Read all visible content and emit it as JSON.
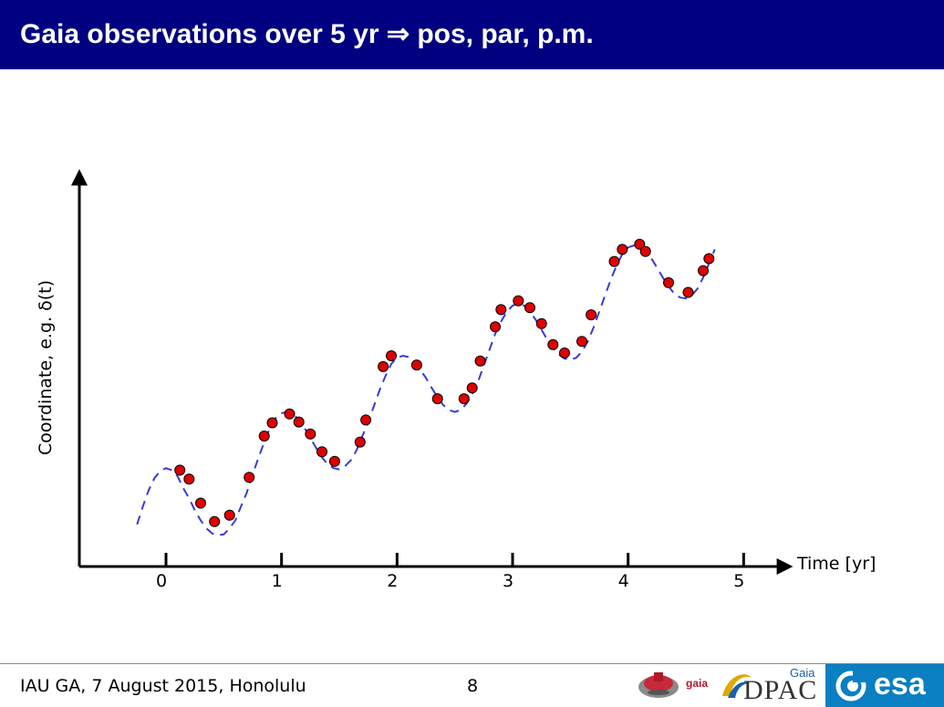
{
  "slide": {
    "title": "Gaia observations over 5 yr ⇒ pos, par, p.m.",
    "footer": "IAU GA, 7 August 2015, Honolulu",
    "page_number": "8"
  },
  "logos": {
    "gaia_label": "gaia",
    "dpac_label": "DPAC",
    "dpac_superscript": "Gaia",
    "esa_label": "esa"
  },
  "colors": {
    "title_bar": "#000080",
    "curve": "#3a3ad6",
    "points": "#e00000",
    "esa_blue": "#0a7fc2"
  },
  "chart_data": {
    "type": "scatter",
    "xlabel": "Time [yr]",
    "ylabel": "Coordinate, e.g. δ(t)",
    "xticks": [
      0,
      1,
      2,
      3,
      4,
      5
    ],
    "xlim": [
      -0.75,
      5.4
    ],
    "ylim": [
      0,
      10
    ],
    "series": [
      {
        "kind": "dashed-curve",
        "x": [
          -0.25,
          -0.2,
          -0.15,
          -0.1,
          -0.05,
          0,
          0.05,
          0.1,
          0.15,
          0.2,
          0.25,
          0.3,
          0.35,
          0.4,
          0.45,
          0.5,
          0.55,
          0.6,
          0.65,
          0.7,
          0.75,
          0.8,
          0.85,
          0.9,
          0.95,
          1,
          1.05,
          1.1,
          1.15,
          1.2,
          1.25,
          1.3,
          1.35,
          1.4,
          1.45,
          1.5,
          1.55,
          1.6,
          1.65,
          1.7,
          1.75,
          1.8,
          1.85,
          1.9,
          1.95,
          2,
          2.05,
          2.1,
          2.15,
          2.2,
          2.25,
          2.3,
          2.35,
          2.4,
          2.45,
          2.5,
          2.55,
          2.6,
          2.65,
          2.7,
          2.75,
          2.8,
          2.85,
          2.9,
          2.95,
          3,
          3.05,
          3.1,
          3.15,
          3.2,
          3.25,
          3.3,
          3.35,
          3.4,
          3.45,
          3.5,
          3.55,
          3.6,
          3.65,
          3.7,
          3.75,
          3.8,
          3.85,
          3.9,
          3.95,
          4,
          4.05,
          4.1,
          4.15,
          4.2,
          4.25,
          4.3,
          4.35,
          4.4,
          4.45,
          4.5,
          4.55,
          4.6,
          4.65,
          4.7,
          4.75
        ],
        "y": [
          1.05,
          1.5,
          1.9,
          2.2,
          2.38,
          2.45,
          2.4,
          2.25,
          1.95,
          1.7,
          1.4,
          1.15,
          0.95,
          0.82,
          0.78,
          0.8,
          0.95,
          1.15,
          1.5,
          1.85,
          2.3,
          2.7,
          3.1,
          3.45,
          3.7,
          3.82,
          3.85,
          3.8,
          3.65,
          3.45,
          3.2,
          2.95,
          2.72,
          2.55,
          2.45,
          2.42,
          2.5,
          2.65,
          2.9,
          3.25,
          3.6,
          4.0,
          4.4,
          4.75,
          5.05,
          5.2,
          5.25,
          5.22,
          5.1,
          4.9,
          4.7,
          4.45,
          4.22,
          4.02,
          3.9,
          3.85,
          3.9,
          4.05,
          4.3,
          4.6,
          5.0,
          5.4,
          5.8,
          6.1,
          6.35,
          6.5,
          6.55,
          6.5,
          6.35,
          6.15,
          5.9,
          5.65,
          5.45,
          5.28,
          5.18,
          5.15,
          5.2,
          5.35,
          5.6,
          5.95,
          6.35,
          6.75,
          7.15,
          7.5,
          7.78,
          7.95,
          8.0,
          7.95,
          7.85,
          7.68,
          7.45,
          7.2,
          6.98,
          6.8,
          6.7,
          6.68,
          6.75,
          6.92,
          7.2,
          7.55,
          7.9
        ]
      },
      {
        "kind": "points",
        "x": [
          0.12,
          0.2,
          0.3,
          0.42,
          0.55,
          0.72,
          0.85,
          0.92,
          1.07,
          1.15,
          1.25,
          1.35,
          1.46,
          1.68,
          1.73,
          1.88,
          1.95,
          2.17,
          2.35,
          2.58,
          2.65,
          2.72,
          2.85,
          2.9,
          3.05,
          3.15,
          3.25,
          3.35,
          3.45,
          3.6,
          3.68,
          3.88,
          3.95,
          4.1,
          4.15,
          4.35,
          4.52,
          4.65,
          4.7
        ],
        "y": [
          2.4,
          2.18,
          1.58,
          1.12,
          1.28,
          2.22,
          3.25,
          3.58,
          3.8,
          3.6,
          3.3,
          2.86,
          2.62,
          3.1,
          3.65,
          4.98,
          5.25,
          5.02,
          4.18,
          4.18,
          4.45,
          5.12,
          5.97,
          6.4,
          6.62,
          6.45,
          6.05,
          5.53,
          5.32,
          5.61,
          6.27,
          7.6,
          7.9,
          8.03,
          7.85,
          7.07,
          6.83,
          7.37,
          7.67
        ]
      }
    ]
  }
}
